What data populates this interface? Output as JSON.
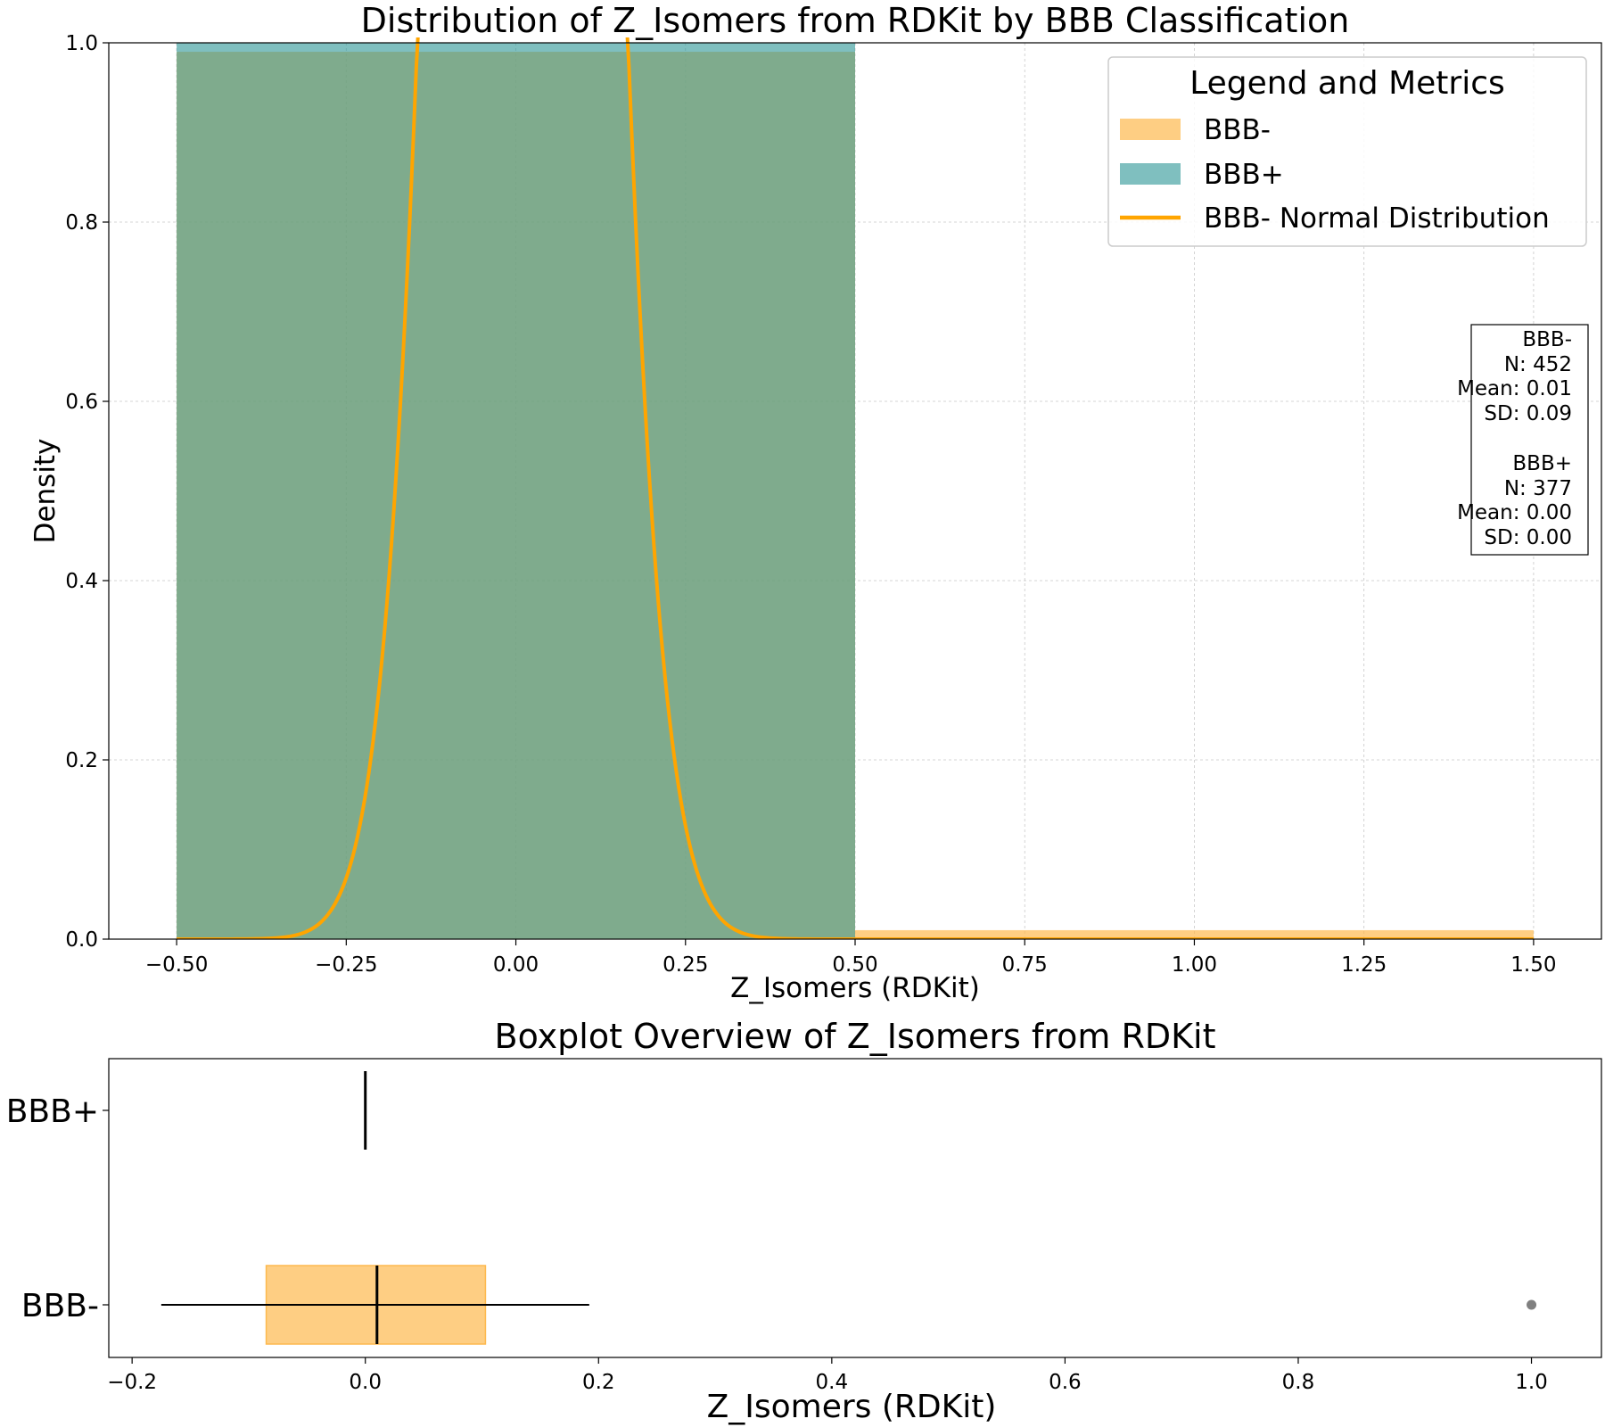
{
  "chart_data": [
    {
      "type": "histogram",
      "title": "Distribution of Z_Isomers from RDKit by BBB Classification",
      "xlabel": "Z_Isomers (RDKit)",
      "ylabel": "Density",
      "xlim": [
        -0.6,
        1.6
      ],
      "ylim": [
        0,
        1.0
      ],
      "x_ticks": [
        "−0.50",
        "−0.25",
        "0.00",
        "0.25",
        "0.50",
        "0.75",
        "1.00",
        "1.25",
        "1.50"
      ],
      "x_tick_values": [
        -0.5,
        -0.25,
        0,
        0.25,
        0.5,
        0.75,
        1.0,
        1.25,
        1.5
      ],
      "y_ticks": [
        "0.0",
        "0.2",
        "0.4",
        "0.6",
        "0.8",
        "1.0"
      ],
      "y_tick_values": [
        0,
        0.2,
        0.4,
        0.6,
        0.8,
        1.0
      ],
      "grid": true,
      "series": [
        {
          "name": "BBB-",
          "kind": "histogram",
          "color": "#FDB94E",
          "bins": [
            {
              "x0": -0.5,
              "x1": 0.5,
              "density": 0.99
            },
            {
              "x0": 0.5,
              "x1": 1.5,
              "density": 0.01
            }
          ]
        },
        {
          "name": "BBB+",
          "kind": "histogram",
          "color": "#2A9494",
          "bins": [
            {
              "x0": -0.5,
              "x1": 0.5,
              "density": 1.0
            }
          ]
        },
        {
          "name": "BBB- Normal Distribution",
          "kind": "line",
          "color": "#FFA500",
          "mean": 0.01,
          "sd": 0.09
        }
      ],
      "legend": {
        "title": "Legend and Metrics",
        "position": "top-right",
        "items": [
          "BBB-",
          "BBB+",
          "BBB- Normal Distribution"
        ]
      },
      "metrics": [
        {
          "group": "BBB-",
          "n": "N: 452",
          "mean": "Mean: 0.01",
          "sd": "SD: 0.09"
        },
        {
          "group": "BBB+",
          "n": "N: 377",
          "mean": "Mean: 0.00",
          "sd": "SD: 0.00"
        }
      ]
    },
    {
      "type": "boxplot",
      "title": "Boxplot Overview of Z_Isomers from RDKit",
      "xlabel": "Z_Isomers (RDKit)",
      "xlim": [
        -0.22,
        1.06
      ],
      "x_ticks": [
        "−0.2",
        "0.0",
        "0.2",
        "0.4",
        "0.6",
        "0.8",
        "1.0"
      ],
      "x_tick_values": [
        -0.2,
        0,
        0.2,
        0.4,
        0.6,
        0.8,
        1.0
      ],
      "categories": [
        "BBB+",
        "BBB-"
      ],
      "boxes": [
        {
          "name": "BBB+",
          "whisker_low": 0,
          "q1": 0,
          "median": 0,
          "q3": 0,
          "whisker_high": 0,
          "outliers": [],
          "color": "#2A9494"
        },
        {
          "name": "BBB-",
          "whisker_low": -0.175,
          "q1": -0.085,
          "median": 0.01,
          "q3": 0.103,
          "whisker_high": 0.192,
          "outliers": [
            1.0
          ],
          "color": "#FDB94E"
        }
      ]
    }
  ]
}
